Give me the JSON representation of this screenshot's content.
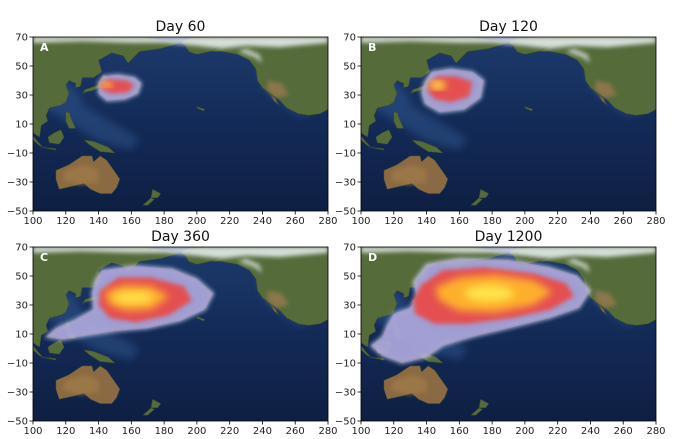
{
  "colors": {
    "ocean_deep": "#0f1d3a",
    "ocean": "#1e3564",
    "shelf": "#3d6aa8",
    "land_green": "#556b3a",
    "land_brown": "#8a6a42",
    "ice": "#eef3f7",
    "plume_low": "#8fa6e6",
    "plume_mid": "#e84c4c",
    "plume_high": "#ffb52b",
    "plume_peak": "#ffe84d"
  },
  "chart_data": [
    {
      "type": "heatmap",
      "panel": "A",
      "title": "Day 60",
      "xlim": [
        100,
        280
      ],
      "ylim": [
        -50,
        70
      ],
      "xticks": [
        "100",
        "120",
        "140",
        "160",
        "180",
        "200",
        "220",
        "240",
        "260",
        "280"
      ],
      "yticks": [
        "70",
        "50",
        "30",
        "10",
        "−10",
        "−30",
        "−50"
      ],
      "grid": false,
      "plume": {
        "extent_lon": [
          139,
          166
        ],
        "extent_lat": [
          26,
          44
        ],
        "outer": [
          [
            140,
            38
          ],
          [
            143,
            43
          ],
          [
            152,
            44
          ],
          [
            162,
            42
          ],
          [
            166,
            38
          ],
          [
            164,
            31
          ],
          [
            156,
            27
          ],
          [
            145,
            26
          ],
          [
            140,
            31
          ]
        ],
        "core": [
          [
            141,
            38
          ],
          [
            147,
            41
          ],
          [
            157,
            40
          ],
          [
            162,
            37
          ],
          [
            158,
            32
          ],
          [
            148,
            31
          ],
          [
            142,
            34
          ]
        ],
        "peak": [
          [
            141,
            38
          ],
          [
            145,
            39
          ],
          [
            149,
            37
          ],
          [
            146,
            35
          ],
          [
            142,
            36
          ]
        ]
      }
    },
    {
      "type": "heatmap",
      "panel": "B",
      "title": "Day 120",
      "xlim": [
        100,
        280
      ],
      "ylim": [
        -50,
        70
      ],
      "xticks": [
        "100",
        "120",
        "140",
        "160",
        "180",
        "200",
        "220",
        "240",
        "260",
        "280"
      ],
      "yticks": [
        "70",
        "50",
        "30",
        "10",
        "−10",
        "−30",
        "−50"
      ],
      "grid": false,
      "plume": {
        "extent_lon": [
          138,
          175
        ],
        "extent_lat": [
          17,
          48
        ],
        "outer": [
          [
            139,
            39
          ],
          [
            143,
            46
          ],
          [
            155,
            48
          ],
          [
            168,
            46
          ],
          [
            175,
            40
          ],
          [
            173,
            28
          ],
          [
            163,
            20
          ],
          [
            148,
            18
          ],
          [
            139,
            24
          ],
          [
            137,
            32
          ]
        ],
        "core": [
          [
            141,
            38
          ],
          [
            147,
            43
          ],
          [
            158,
            43
          ],
          [
            168,
            39
          ],
          [
            166,
            29
          ],
          [
            155,
            25
          ],
          [
            145,
            27
          ],
          [
            141,
            32
          ]
        ],
        "peak": [
          [
            141,
            38
          ],
          [
            147,
            40
          ],
          [
            153,
            37
          ],
          [
            149,
            34
          ],
          [
            143,
            35
          ]
        ]
      }
    },
    {
      "type": "heatmap",
      "panel": "C",
      "title": "Day 360",
      "xlim": [
        100,
        280
      ],
      "ylim": [
        -50,
        70
      ],
      "xticks": [
        "100",
        "120",
        "140",
        "160",
        "180",
        "200",
        "220",
        "240",
        "260",
        "280"
      ],
      "yticks": [
        "70",
        "50",
        "30",
        "10",
        "−10",
        "−30",
        "−50"
      ],
      "grid": false,
      "plume": {
        "extent_lon": [
          106,
          210
        ],
        "extent_lat": [
          6,
          56
        ],
        "outer": [
          [
            142,
            54
          ],
          [
            162,
            57
          ],
          [
            185,
            55
          ],
          [
            200,
            48
          ],
          [
            210,
            38
          ],
          [
            205,
            27
          ],
          [
            190,
            19
          ],
          [
            170,
            14
          ],
          [
            150,
            12
          ],
          [
            133,
            9
          ],
          [
            118,
            6
          ],
          [
            108,
            8
          ],
          [
            114,
            14
          ],
          [
            126,
            20
          ],
          [
            137,
            27
          ],
          [
            136,
            38
          ],
          [
            138,
            47
          ]
        ],
        "core": [
          [
            141,
            40
          ],
          [
            152,
            49
          ],
          [
            172,
            49
          ],
          [
            192,
            43
          ],
          [
            197,
            33
          ],
          [
            183,
            23
          ],
          [
            163,
            18
          ],
          [
            147,
            21
          ],
          [
            140,
            30
          ]
        ],
        "peak": [
          [
            144,
            39
          ],
          [
            156,
            44
          ],
          [
            172,
            43
          ],
          [
            183,
            36
          ],
          [
            172,
            27
          ],
          [
            156,
            26
          ],
          [
            146,
            31
          ]
        ]
      }
    },
    {
      "type": "heatmap",
      "panel": "D",
      "title": "Day 1200",
      "xlim": [
        100,
        280
      ],
      "ylim": [
        -50,
        70
      ],
      "xticks": [
        "100",
        "120",
        "140",
        "160",
        "180",
        "200",
        "220",
        "240",
        "260",
        "280"
      ],
      "yticks": [
        "70",
        "50",
        "30",
        "10",
        "−10",
        "−30",
        "−50"
      ],
      "grid": false,
      "plume": {
        "extent_lon": [
          106,
          240
        ],
        "extent_lat": [
          -14,
          62
        ],
        "outer": [
          [
            140,
            58
          ],
          [
            160,
            62
          ],
          [
            190,
            61
          ],
          [
            215,
            56
          ],
          [
            232,
            50
          ],
          [
            240,
            40
          ],
          [
            233,
            28
          ],
          [
            215,
            21
          ],
          [
            190,
            14
          ],
          [
            168,
            8
          ],
          [
            150,
            2
          ],
          [
            140,
            -6
          ],
          [
            125,
            -10
          ],
          [
            113,
            -5
          ],
          [
            106,
            2
          ],
          [
            113,
            8
          ],
          [
            116,
            16
          ],
          [
            120,
            24
          ],
          [
            130,
            28
          ],
          [
            134,
            36
          ],
          [
            132,
            46
          ]
        ],
        "core": [
          [
            137,
            44
          ],
          [
            150,
            54
          ],
          [
            175,
            56
          ],
          [
            205,
            52
          ],
          [
            225,
            45
          ],
          [
            230,
            36
          ],
          [
            216,
            27
          ],
          [
            192,
            21
          ],
          [
            165,
            17
          ],
          [
            145,
            17
          ],
          [
            133,
            24
          ],
          [
            132,
            34
          ]
        ],
        "peak": [
          [
            145,
            42
          ],
          [
            160,
            49
          ],
          [
            182,
            51
          ],
          [
            205,
            47
          ],
          [
            217,
            39
          ],
          [
            205,
            30
          ],
          [
            182,
            25
          ],
          [
            160,
            26
          ],
          [
            148,
            33
          ]
        ]
      }
    }
  ]
}
